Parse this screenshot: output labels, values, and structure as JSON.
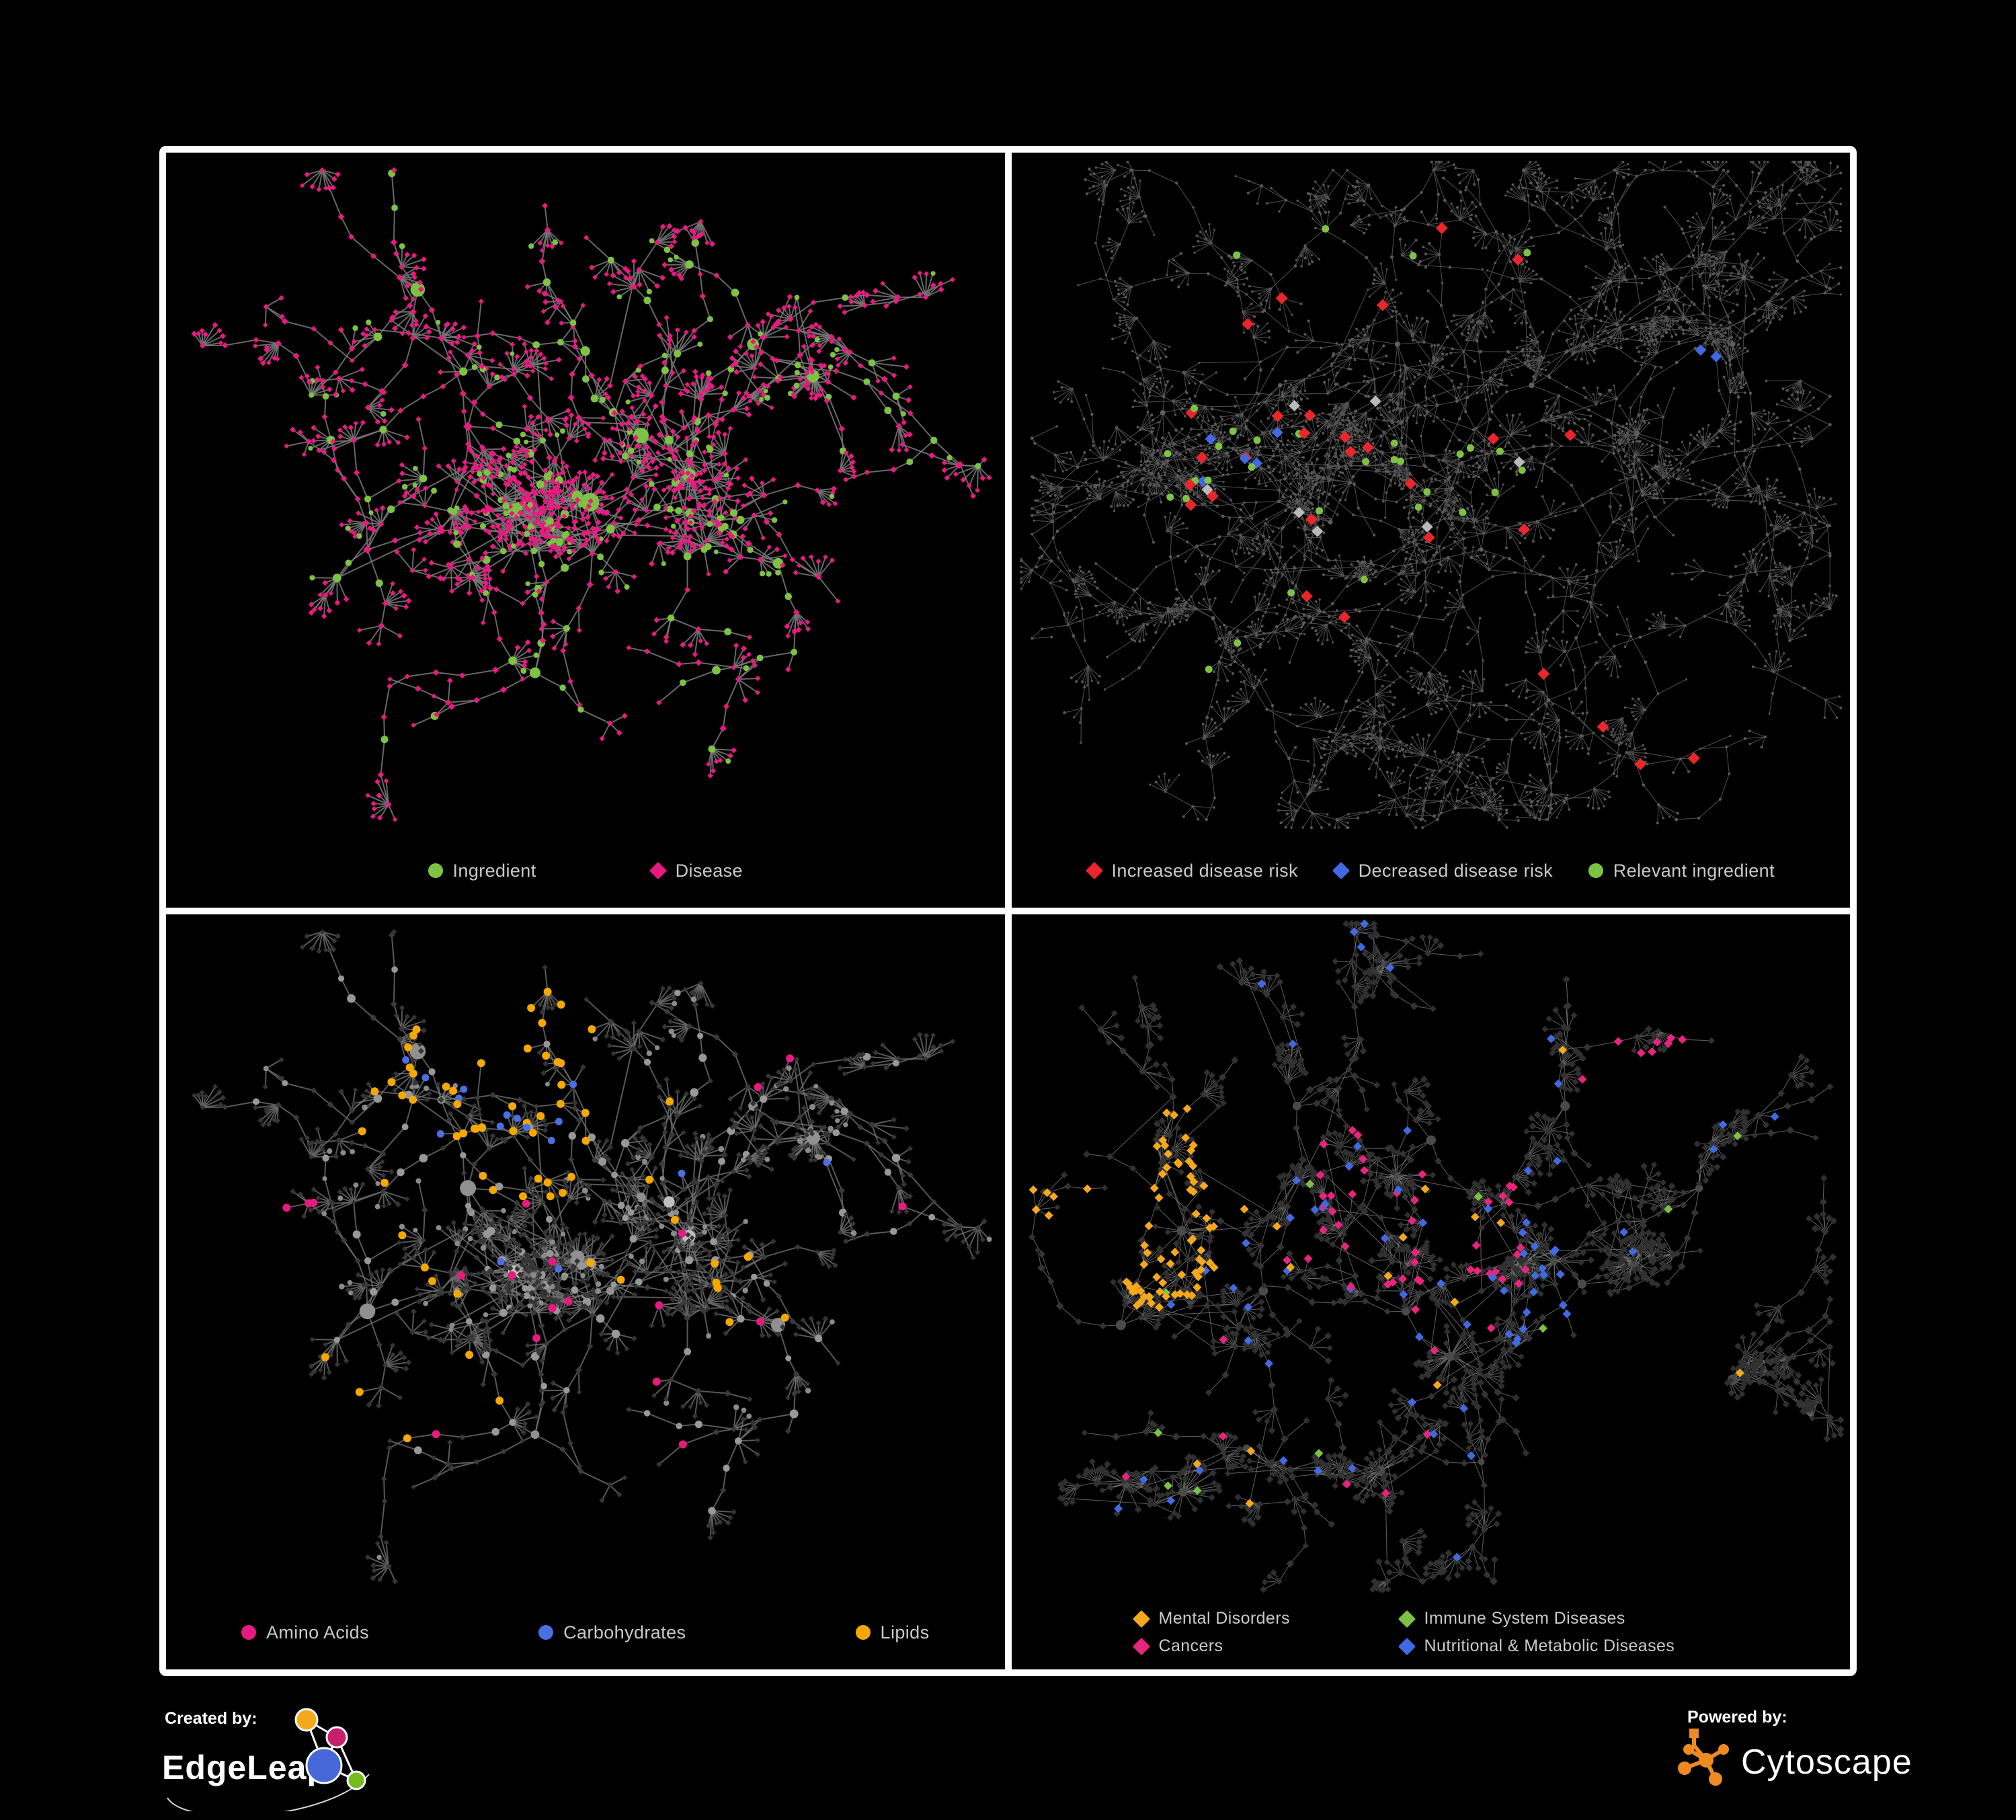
{
  "page": {
    "background": "#000000",
    "frame_color": "#ffffff"
  },
  "footer": {
    "created_by_label": "Created by:",
    "edgeleap_name": "EdgeLeap",
    "powered_by_label": "Powered by:",
    "cytoscape_name": "Cytoscape",
    "edgeleap_colors": {
      "orange": "#F5A81C",
      "magenta": "#C81E6E",
      "blue": "#4668D9",
      "green": "#76BC21"
    },
    "cytoscape_color": "#EE8A22"
  },
  "panels": [
    {
      "name": "ingredient-disease-network",
      "legend": {
        "layout": "center",
        "items": [
          {
            "label": "Ingredient",
            "shape": "circle",
            "color": "#7DC242"
          },
          {
            "label": "Disease",
            "shape": "diamond",
            "color": "#E61B80"
          }
        ]
      },
      "network": {
        "seed": 101,
        "clusters": [
          [
            0.36,
            0.4
          ],
          [
            0.5,
            0.29
          ],
          [
            0.24,
            0.58
          ],
          [
            0.53,
            0.55
          ],
          [
            0.7,
            0.28
          ],
          [
            0.44,
            0.76
          ],
          [
            0.3,
            0.2
          ],
          [
            0.73,
            0.6
          ],
          [
            0.6,
            0.42
          ]
        ],
        "branches": [
          4,
          6
        ],
        "chain": [
          3,
          6
        ],
        "step": [
          26,
          54
        ],
        "p_fan": 0.3,
        "fan": [
          3,
          8
        ],
        "fan_r": [
          17,
          38
        ],
        "p_sub": 0.22,
        "bursts": 6,
        "burst_k": [
          12,
          24
        ],
        "burst_r": 58,
        "crosslinks": 60,
        "style": {
          "edge": {
            "color": "#7a7a7a",
            "width": 2.0,
            "opacity": 0.85
          },
          "roles": {
            "hub": [
              {
                "p": 0.8,
                "shape": "circle",
                "color": "#7DC242",
                "r": [
                  6.5,
                  14
                ]
              },
              {
                "p": 0.2,
                "shape": "diamond",
                "color": "#E61B80",
                "r": [
                  6,
                  9
                ]
              }
            ],
            "mid": [
              {
                "p": 0.32,
                "shape": "circle",
                "color": "#7DC242",
                "r": [
                  4.5,
                  6.5
                ]
              },
              {
                "p": 0.68,
                "shape": "diamond",
                "color": "#E61B80",
                "r": [
                  4.2,
                  5.2
                ]
              }
            ],
            "leaf": [
              {
                "p": 0.1,
                "shape": "circle",
                "color": "#7DC242",
                "r": [
                  3.5,
                  4.5
                ]
              },
              {
                "p": 0.9,
                "shape": "diamond",
                "color": "#E61B80",
                "r": [
                  3.8,
                  4.6
                ]
              }
            ]
          },
          "highlights": []
        }
      }
    },
    {
      "name": "disease-risk-network",
      "legend": {
        "layout": "spread",
        "items": [
          {
            "label": "Increased disease risk",
            "shape": "diamond",
            "color": "#E9262C"
          },
          {
            "label": "Decreased disease risk",
            "shape": "diamond",
            "color": "#4169E1"
          },
          {
            "label": "Relevant ingredient",
            "shape": "circle",
            "color": "#7DC242"
          }
        ]
      },
      "network": {
        "seed": 202,
        "clusters": [
          [
            0.32,
            0.34
          ],
          [
            0.46,
            0.28
          ],
          [
            0.38,
            0.54
          ],
          [
            0.62,
            0.34
          ],
          [
            0.56,
            0.58
          ],
          [
            0.74,
            0.52
          ],
          [
            0.24,
            0.68
          ],
          [
            0.64,
            0.8
          ],
          [
            0.86,
            0.28
          ],
          [
            0.18,
            0.38
          ]
        ],
        "branches": [
          4,
          6
        ],
        "chain": [
          5,
          9
        ],
        "step": [
          28,
          52
        ],
        "p_fan": 0.36,
        "fan": [
          3,
          8
        ],
        "fan_r": [
          15,
          32
        ],
        "p_sub": 0.24,
        "bursts": 5,
        "burst_k": [
          10,
          20
        ],
        "burst_r": 50,
        "crosslinks": 36,
        "style": {
          "edge": {
            "color": "#4f4f4f",
            "width": 1.1,
            "opacity": 0.95
          },
          "roles": {
            "hub": [
              {
                "p": 1,
                "shape": "circle",
                "color": "#606060",
                "r": [
                  2.6,
                  4.2
                ]
              }
            ],
            "mid": [
              {
                "p": 1,
                "shape": "circle",
                "color": "#5a5a5a",
                "r": [
                  1.7,
                  2.5
                ]
              }
            ],
            "leaf": [
              {
                "p": 1,
                "shape": "circle",
                "color": "#565656",
                "r": [
                  1.5,
                  2.2
                ]
              }
            ]
          },
          "highlights": [
            {
              "shape": "diamond",
              "color": "#E9262C",
              "r": 9,
              "count": 22,
              "region": [
                0.46,
                0.42,
                0.26
              ]
            },
            {
              "shape": "diamond",
              "color": "#E9262C",
              "r": 9,
              "count": 4,
              "region": [
                0.73,
                0.8,
                0.11
              ]
            },
            {
              "shape": "diamond",
              "color": "#E9262C",
              "r": 9,
              "count": 3,
              "region": [
                0.2,
                0.42,
                0.09
              ]
            },
            {
              "shape": "diamond",
              "color": "#4169E1",
              "r": 8.5,
              "count": 5,
              "region": [
                0.25,
                0.42,
                0.09
              ]
            },
            {
              "shape": "diamond",
              "color": "#4169E1",
              "r": 8.5,
              "count": 2,
              "region": [
                0.86,
                0.27,
                0.05
              ]
            },
            {
              "shape": "diamond",
              "color": "#b9b9b9",
              "r": 8.5,
              "count": 7,
              "region": [
                0.44,
                0.45,
                0.22
              ]
            },
            {
              "shape": "circle",
              "color": "#7DC242",
              "r": 5.5,
              "count": 26,
              "region": [
                0.44,
                0.4,
                0.28
              ]
            },
            {
              "shape": "circle",
              "color": "#7DC242",
              "r": 5.5,
              "count": 6,
              "region": [
                0.22,
                0.52,
                0.2
              ]
            }
          ]
        }
      }
    },
    {
      "name": "nutrient-class-network",
      "legend": {
        "layout": "spread",
        "items": [
          {
            "label": "Amino Acids",
            "shape": "circle",
            "color": "#E61B80"
          },
          {
            "label": "Carbohydrates",
            "shape": "circle",
            "color": "#4A6FE0"
          },
          {
            "label": "Lipids",
            "shape": "circle",
            "color": "#F5A800"
          }
        ]
      },
      "network": {
        "same_as": 0,
        "seed": 303,
        "style": {
          "edge": {
            "color": "#6f6f6f",
            "width": 2.0,
            "opacity": 0.8
          },
          "roles": {
            "hub": [
              {
                "p": 0.3,
                "shape": "circle",
                "color": "#c0c0c0",
                "r": [
                  6.5,
                  12
                ]
              },
              {
                "p": 0.7,
                "shape": "circle",
                "color": "#909090",
                "r": [
                  6,
                  12
                ]
              }
            ],
            "mid": [
              {
                "p": 0.32,
                "shape": "circle",
                "color": "#989898",
                "r": [
                  4.5,
                  6.5
                ]
              },
              {
                "p": 0.68,
                "shape": "diamond",
                "color": "#3a3a3a",
                "r": [
                  4.2,
                  5.2
                ]
              }
            ],
            "leaf": [
              {
                "p": 0.1,
                "shape": "circle",
                "color": "#8a8a8a",
                "r": [
                  3.5,
                  4.5
                ]
              },
              {
                "p": 0.9,
                "shape": "diamond",
                "color": "#353535",
                "r": [
                  3.8,
                  4.6
                ]
              }
            ]
          },
          "highlights": [
            {
              "shape": "circle",
              "color": "#F5A800",
              "r": 6,
              "count": 40,
              "region": [
                0.4,
                0.27,
                0.14
              ]
            },
            {
              "shape": "circle",
              "color": "#F5A800",
              "r": 6,
              "count": 26,
              "region": [
                0.45,
                0.52,
                0.3
              ]
            },
            {
              "shape": "circle",
              "color": "#4A6FE0",
              "r": 5.5,
              "count": 12,
              "region": [
                0.38,
                0.28,
                0.11
              ]
            },
            {
              "shape": "circle",
              "color": "#4A6FE0",
              "r": 5.5,
              "count": 4,
              "region": [
                0.6,
                0.6,
                0.28
              ]
            },
            {
              "shape": "circle",
              "color": "#E61B80",
              "r": 6,
              "count": 8,
              "region": [
                0.35,
                0.72,
                0.28
              ]
            },
            {
              "shape": "circle",
              "color": "#E61B80",
              "r": 6,
              "count": 8,
              "region": [
                0.62,
                0.42,
                0.32
              ]
            },
            {
              "shape": "circle",
              "color": "#E61B80",
              "r": 6,
              "count": 3,
              "region": [
                0.1,
                0.42,
                0.1
              ]
            }
          ]
        }
      }
    },
    {
      "name": "disease-category-network",
      "legend": {
        "layout": "grid2",
        "items": [
          {
            "label": "Mental Disorders",
            "shape": "diamond",
            "color": "#F5A81C"
          },
          {
            "label": "Immune System Diseases",
            "shape": "diamond",
            "color": "#7DC142"
          },
          {
            "label": "Cancers",
            "shape": "diamond",
            "color": "#E8247D"
          },
          {
            "label": "Nutritional & Metabolic Diseases",
            "shape": "diamond",
            "color": "#4169E1"
          }
        ]
      },
      "network": {
        "seed": 404,
        "clusters": [
          [
            0.17,
            0.4
          ],
          [
            0.34,
            0.28
          ],
          [
            0.3,
            0.55
          ],
          [
            0.5,
            0.33
          ],
          [
            0.47,
            0.58
          ],
          [
            0.66,
            0.28
          ],
          [
            0.68,
            0.54
          ],
          [
            0.82,
            0.4
          ],
          [
            0.56,
            0.8
          ],
          [
            0.28,
            0.78
          ],
          [
            0.86,
            0.68
          ],
          [
            0.13,
            0.6
          ]
        ],
        "branches": [
          4,
          6
        ],
        "chain": [
          3,
          6
        ],
        "step": [
          24,
          48
        ],
        "p_fan": 0.34,
        "fan": [
          4,
          9
        ],
        "fan_r": [
          15,
          34
        ],
        "p_sub": 0.22,
        "bursts": 10,
        "burst_k": [
          14,
          28
        ],
        "burst_r": 56,
        "crosslinks": 80,
        "style": {
          "edge": {
            "color": "#787878",
            "width": 1.1,
            "opacity": 0.75
          },
          "roles": {
            "hub": [
              {
                "p": 1,
                "shape": "circle",
                "color": "#4a4a4a",
                "r": [
                  4.5,
                  8
                ]
              }
            ],
            "mid": [
              {
                "p": 1,
                "shape": "diamond",
                "color": "#343434",
                "r": [
                  5,
                  6
                ]
              }
            ],
            "leaf": [
              {
                "p": 1,
                "shape": "diamond",
                "color": "#303030",
                "r": [
                  4.6,
                  5.6
                ]
              }
            ]
          },
          "highlights": [
            {
              "shape": "diamond",
              "color": "#F5A81C",
              "r": 6.5,
              "count": 75,
              "region": [
                0.15,
                0.42,
                0.13
              ]
            },
            {
              "shape": "diamond",
              "color": "#F5A81C",
              "r": 6.5,
              "count": 14,
              "region": [
                0.5,
                0.55,
                0.45
              ]
            },
            {
              "shape": "diamond",
              "color": "#E8247D",
              "r": 6.5,
              "count": 46,
              "region": [
                0.47,
                0.47,
                0.15
              ]
            },
            {
              "shape": "diamond",
              "color": "#E8247D",
              "r": 6.5,
              "count": 8,
              "region": [
                0.76,
                0.2,
                0.1
              ]
            },
            {
              "shape": "diamond",
              "color": "#E8247D",
              "r": 6.5,
              "count": 6,
              "region": [
                0.3,
                0.8,
                0.2
              ]
            },
            {
              "shape": "diamond",
              "color": "#4169E1",
              "r": 6.5,
              "count": 18,
              "region": [
                0.62,
                0.52,
                0.09
              ]
            },
            {
              "shape": "diamond",
              "color": "#4169E1",
              "r": 6.5,
              "count": 40,
              "region": [
                0.5,
                0.3,
                0.45
              ]
            },
            {
              "shape": "diamond",
              "color": "#4169E1",
              "r": 6.5,
              "count": 14,
              "region": [
                0.38,
                0.75,
                0.3
              ]
            },
            {
              "shape": "diamond",
              "color": "#7DC142",
              "r": 6.5,
              "count": 10,
              "region": [
                0.45,
                0.45,
                0.45
              ]
            }
          ]
        }
      }
    }
  ]
}
